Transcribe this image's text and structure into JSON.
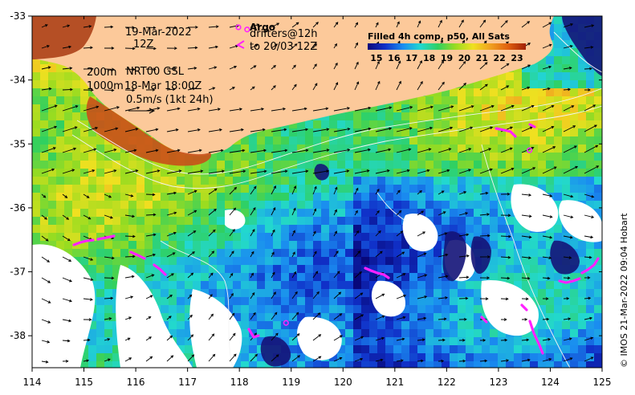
{
  "chart_data": {
    "type": "heatmap",
    "xlim": [
      114,
      125
    ],
    "ylim": [
      -38.5,
      -33
    ],
    "x_ticks": [
      114,
      115,
      116,
      117,
      118,
      119,
      120,
      121,
      122,
      123,
      124,
      125
    ],
    "y_ticks": [
      -33,
      -34,
      -35,
      -36,
      -37,
      -38
    ],
    "x_tick_labels": [
      "114",
      "115",
      "116",
      "117",
      "118",
      "119",
      "120",
      "121",
      "122",
      "123",
      "124",
      "125"
    ],
    "y_tick_labels": [
      "-33",
      "-34",
      "-35",
      "-36",
      "-37",
      "-38"
    ],
    "colorbar": {
      "title": "Filled 4h comp, p50, All Sats",
      "min": 14.5,
      "max": 23.5,
      "ticks": [
        15,
        16,
        17,
        18,
        19,
        20,
        21,
        22,
        23
      ],
      "tick_labels": [
        "15",
        "16",
        "17",
        "18",
        "19",
        "20",
        "21",
        "22",
        "23"
      ],
      "stops": [
        "#08087a",
        "#1030c8",
        "#1a8cf0",
        "#22d8d0",
        "#30d060",
        "#9adc20",
        "#f0e020",
        "#f0a020",
        "#e06010",
        "#a02008"
      ]
    },
    "land_color": "#fcc99a",
    "annotations": {
      "date_line1": "19-Mar-2022",
      "date_line2": "12Z",
      "depth_200": "200m",
      "depth_1000": "1000m",
      "current_source": "NRT00 GSL",
      "current_time": "18-Mar 18:00Z",
      "scale_label": "0.5m/s (1kt 24h)",
      "argo_label": "Argo",
      "drifters_label": "drifters@12h",
      "drifters_to": "to 20/03 12Z"
    },
    "argo_floats": [
      {
        "lon": 118.15,
        "lat": -33.21
      },
      {
        "lon": 123.6,
        "lat": -35.1
      },
      {
        "lon": 118.9,
        "lat": -37.8
      }
    ],
    "credit": "© IMOS 21-Mar-2022 09:04 Hobart"
  }
}
